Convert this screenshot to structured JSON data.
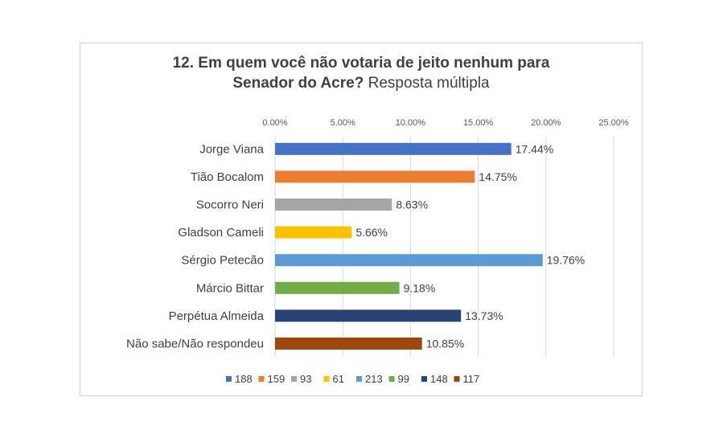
{
  "chart_data": {
    "type": "bar",
    "orientation": "horizontal",
    "title_bold_line1": "12. Em quem você não votaria de jeito nenhum para",
    "title_bold_line2": "Senador do Acre?",
    "title_normal_line2": "Resposta múltipla",
    "xlim": [
      0,
      25
    ],
    "x_ticks": [
      "0.00%",
      "5.00%",
      "10.00%",
      "15.00%",
      "20.00%",
      "25.00%"
    ],
    "x_tick_values": [
      0,
      5,
      10,
      15,
      20,
      25
    ],
    "x_axis_position": "top",
    "grid": true,
    "legend_position": "bottom",
    "categories": [
      "Jorge Viana",
      "Tião Bocalom",
      "Socorro Neri",
      "Gladson Cameli",
      "Sérgio Petecão",
      "Márcio Bittar",
      "Perpétua Almeida",
      "Não sabe/Não respondeu"
    ],
    "values": [
      17.44,
      14.75,
      8.63,
      5.66,
      19.76,
      9.18,
      13.73,
      10.85
    ],
    "data_labels": [
      "17.44%",
      "14.75%",
      "8.63%",
      "5.66%",
      "19.76%",
      "9.18%",
      "13.73%",
      "10.85%"
    ],
    "legend": [
      "188",
      "159",
      "93",
      "61",
      "213",
      "99",
      "148",
      "117"
    ],
    "colors": [
      "#4472c4",
      "#ed7d31",
      "#a5a5a5",
      "#ffc000",
      "#5b9bd5",
      "#70ad47",
      "#264478",
      "#9e480e"
    ]
  }
}
